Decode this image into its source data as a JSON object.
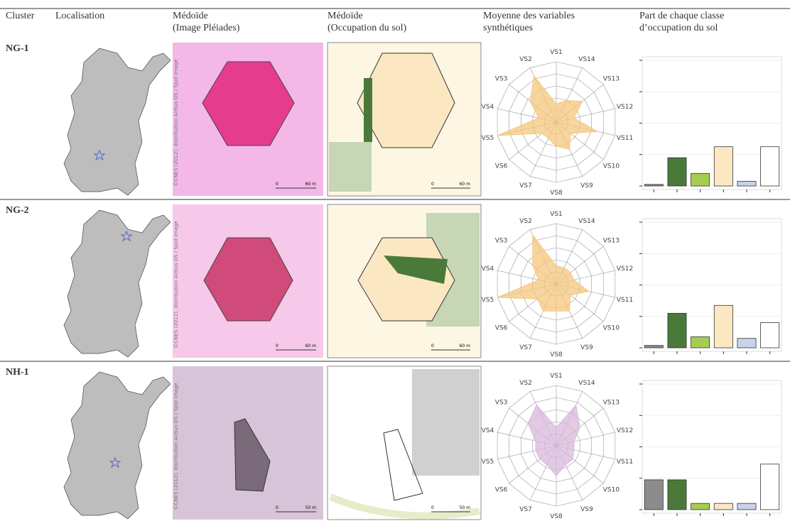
{
  "table": {
    "headers": [
      [
        "Cluster"
      ],
      [
        "Localisation"
      ],
      [
        "Médoïde",
        "(Image Pléiades)"
      ],
      [
        "Médoïde",
        "(Occupation du sol)"
      ],
      [
        "Moyenne des variables",
        "synthétiques"
      ],
      [
        "Part de chaque classe",
        "d’occupation du sol"
      ]
    ],
    "credit": "©CNES (2012),  distribution Airbus DS / Spot Image",
    "radar_axes": [
      "VS1",
      "VS2",
      "VS3",
      "VS4",
      "VS5",
      "VS6",
      "VS7",
      "VS8",
      "VS9",
      "VS10",
      "VS11",
      "VS12",
      "VS13",
      "VS14"
    ],
    "radar_lim": [
      0,
      1
    ],
    "bar_colors": [
      "#8c8c8c",
      "#4a7a3a",
      "#a5cd4e",
      "#fbe8c2",
      "#c6d3ea",
      "#ffffff"
    ],
    "bar_ylim": [
      0,
      0.8
    ],
    "bar_yticks": [
      0,
      0.2,
      0.4,
      0.6,
      0.8
    ],
    "rows": [
      {
        "cluster": "NG-1",
        "scale": [
          "0",
          "60 m"
        ],
        "radar_color": "#f5c77e",
        "radar": [
          0.3,
          0.85,
          0.55,
          0.3,
          1.0,
          0.3,
          0.3,
          0.4,
          0.5,
          0.3,
          0.7,
          0.3,
          0.55,
          0.4
        ],
        "bars": [
          0.01,
          0.18,
          0.08,
          0.25,
          0.03,
          0.25
        ]
      },
      {
        "cluster": "NG-2",
        "scale": [
          "0",
          "60 m"
        ],
        "radar_color": "#f5c77e",
        "radar": [
          0.3,
          0.9,
          0.5,
          0.3,
          1.0,
          0.4,
          0.5,
          0.45,
          0.5,
          0.3,
          0.55,
          0.3,
          0.3,
          0.3
        ],
        "bars": [
          0.015,
          0.22,
          0.07,
          0.27,
          0.06,
          0.16
        ]
      },
      {
        "cluster": "NH-1",
        "scale": [
          "0",
          "50 m"
        ],
        "radar_color": "#d8b8dc",
        "radar": [
          0.3,
          0.75,
          0.6,
          0.35,
          0.35,
          0.35,
          0.35,
          0.5,
          0.35,
          0.35,
          0.3,
          0.3,
          0.5,
          0.75
        ],
        "bars": [
          0.19,
          0.19,
          0.04,
          0.04,
          0.04,
          0.29
        ]
      }
    ]
  }
}
